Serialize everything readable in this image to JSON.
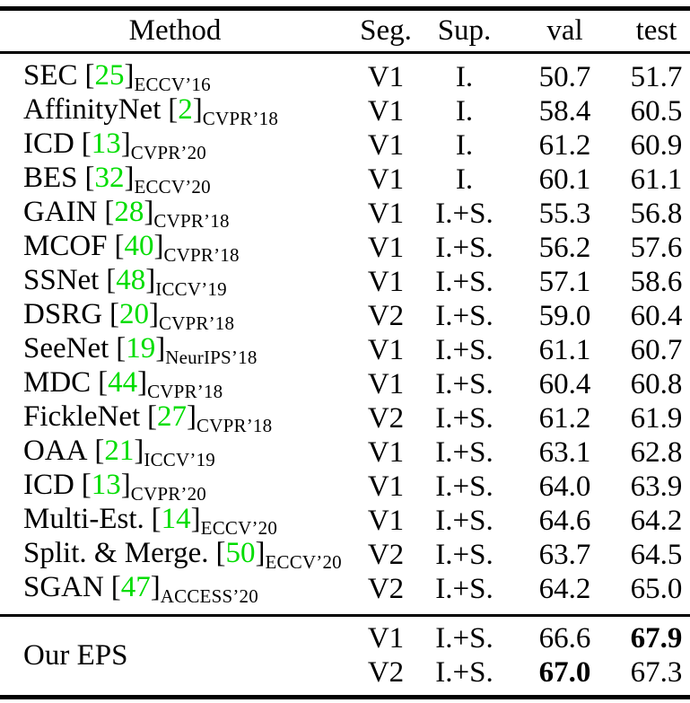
{
  "figure": {
    "type": "table",
    "background": "#ffffff",
    "text_color": "#000000",
    "citation_color": "#00dd00",
    "format": {
      "bracket_open": "[",
      "bracket_close": "]"
    },
    "columns": [
      "Method",
      "Seg.",
      "Sup.",
      "val",
      "test"
    ],
    "rows": [
      {
        "name": "SEC",
        "ref": "25",
        "venue": "ECCV’16",
        "seg": "V1",
        "sup": "I.",
        "val": "50.7",
        "test": "51.7"
      },
      {
        "name": "AffinityNet",
        "ref": "2",
        "venue": "CVPR’18",
        "seg": "V1",
        "sup": "I.",
        "val": "58.4",
        "test": "60.5"
      },
      {
        "name": "ICD",
        "ref": "13",
        "venue": "CVPR’20",
        "seg": "V1",
        "sup": "I.",
        "val": "61.2",
        "test": "60.9"
      },
      {
        "name": "BES",
        "ref": "32",
        "venue": "ECCV’20",
        "seg": "V1",
        "sup": "I.",
        "val": "60.1",
        "test": "61.1"
      },
      {
        "name": "GAIN",
        "ref": "28",
        "venue": "CVPR’18",
        "seg": "V1",
        "sup": "I.+S.",
        "val": "55.3",
        "test": "56.8"
      },
      {
        "name": "MCOF",
        "ref": "40",
        "venue": "CVPR’18",
        "seg": "V1",
        "sup": "I.+S.",
        "val": "56.2",
        "test": "57.6"
      },
      {
        "name": "SSNet",
        "ref": "48",
        "venue": "ICCV’19",
        "seg": "V1",
        "sup": "I.+S.",
        "val": "57.1",
        "test": "58.6"
      },
      {
        "name": "DSRG",
        "ref": "20",
        "venue": "CVPR’18",
        "seg": "V2",
        "sup": "I.+S.",
        "val": "59.0",
        "test": "60.4"
      },
      {
        "name": "SeeNet",
        "ref": "19",
        "venue": "NeurIPS’18",
        "seg": "V1",
        "sup": "I.+S.",
        "val": "61.1",
        "test": "60.7"
      },
      {
        "name": "MDC",
        "ref": "44",
        "venue": "CVPR’18",
        "seg": "V1",
        "sup": "I.+S.",
        "val": "60.4",
        "test": "60.8"
      },
      {
        "name": "FickleNet",
        "ref": "27",
        "venue": "CVPR’18",
        "seg": "V2",
        "sup": "I.+S.",
        "val": "61.2",
        "test": "61.9"
      },
      {
        "name": "OAA",
        "ref": "21",
        "venue": "ICCV’19",
        "seg": "V1",
        "sup": "I.+S.",
        "val": "63.1",
        "test": "62.8"
      },
      {
        "name": "ICD",
        "ref": "13",
        "venue": "CVPR’20",
        "seg": "V1",
        "sup": "I.+S.",
        "val": "64.0",
        "test": "63.9"
      },
      {
        "name": "Multi-Est.",
        "ref": "14",
        "venue": "ECCV’20",
        "seg": "V1",
        "sup": "I.+S.",
        "val": "64.6",
        "test": "64.2"
      },
      {
        "name": "Split. & Merge.",
        "ref": "50",
        "venue": "ECCV’20",
        "seg": "V2",
        "sup": "I.+S.",
        "val": "63.7",
        "test": "64.5"
      },
      {
        "name": "SGAN",
        "ref": "47",
        "venue": "ACCESS’20",
        "seg": "V2",
        "sup": "I.+S.",
        "val": "64.2",
        "test": "65.0"
      }
    ],
    "our_eps": {
      "label": "Our EPS",
      "rows": [
        {
          "seg": "V1",
          "sup": "I.+S.",
          "val": "66.6",
          "test": "67.9",
          "val_bold": false,
          "test_bold": true
        },
        {
          "seg": "V2",
          "sup": "I.+S.",
          "val": "67.0",
          "test": "67.3",
          "val_bold": true,
          "test_bold": false
        }
      ]
    }
  }
}
